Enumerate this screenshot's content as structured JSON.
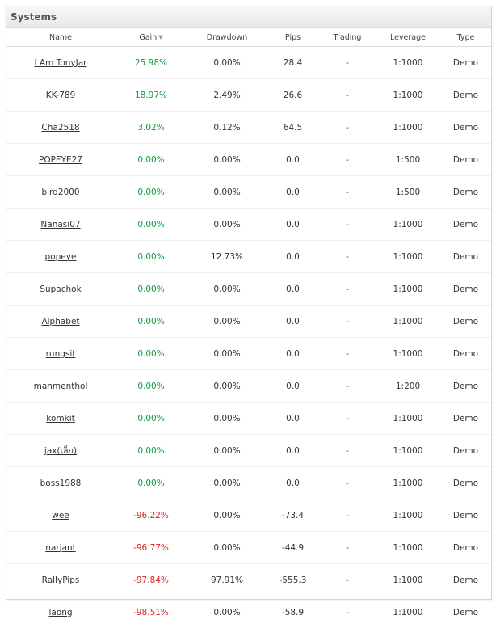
{
  "panel": {
    "title": "Systems"
  },
  "columns": {
    "name": "Name",
    "gain": "Gain",
    "drawdown": "Drawdown",
    "pips": "Pips",
    "trading": "Trading",
    "leverage": "Leverage",
    "type": "Type"
  },
  "colors": {
    "positive": "#0d9b3b",
    "negative": "#d92424"
  },
  "rows": [
    {
      "name": "I Am TonyJar",
      "gain": "25.98%",
      "drawdown": "0.00%",
      "pips": "28.4",
      "trading": "-",
      "leverage": "1:1000",
      "type": "Demo"
    },
    {
      "name": "KK-789",
      "gain": "18.97%",
      "drawdown": "2.49%",
      "pips": "26.6",
      "trading": "-",
      "leverage": "1:1000",
      "type": "Demo"
    },
    {
      "name": "Cha2518",
      "gain": "3.02%",
      "drawdown": "0.12%",
      "pips": "64.5",
      "trading": "-",
      "leverage": "1:1000",
      "type": "Demo"
    },
    {
      "name": "POPEYE27",
      "gain": "0.00%",
      "drawdown": "0.00%",
      "pips": "0.0",
      "trading": "-",
      "leverage": "1:500",
      "type": "Demo"
    },
    {
      "name": "bird2000",
      "gain": "0.00%",
      "drawdown": "0.00%",
      "pips": "0.0",
      "trading": "-",
      "leverage": "1:500",
      "type": "Demo"
    },
    {
      "name": "Nanasi07",
      "gain": "0.00%",
      "drawdown": "0.00%",
      "pips": "0.0",
      "trading": "-",
      "leverage": "1:1000",
      "type": "Demo"
    },
    {
      "name": "popeye",
      "gain": "0.00%",
      "drawdown": "12.73%",
      "pips": "0.0",
      "trading": "-",
      "leverage": "1:1000",
      "type": "Demo"
    },
    {
      "name": "Supachok",
      "gain": "0.00%",
      "drawdown": "0.00%",
      "pips": "0.0",
      "trading": "-",
      "leverage": "1:1000",
      "type": "Demo"
    },
    {
      "name": "Alphabet",
      "gain": "0.00%",
      "drawdown": "0.00%",
      "pips": "0.0",
      "trading": "-",
      "leverage": "1:1000",
      "type": "Demo"
    },
    {
      "name": "rungsit",
      "gain": "0.00%",
      "drawdown": "0.00%",
      "pips": "0.0",
      "trading": "-",
      "leverage": "1:1000",
      "type": "Demo"
    },
    {
      "name": "manmenthol",
      "gain": "0.00%",
      "drawdown": "0.00%",
      "pips": "0.0",
      "trading": "-",
      "leverage": "1:200",
      "type": "Demo"
    },
    {
      "name": "komkit",
      "gain": "0.00%",
      "drawdown": "0.00%",
      "pips": "0.0",
      "trading": "-",
      "leverage": "1:1000",
      "type": "Demo"
    },
    {
      "name": "jax(เล็ก)",
      "gain": "0.00%",
      "drawdown": "0.00%",
      "pips": "0.0",
      "trading": "-",
      "leverage": "1:1000",
      "type": "Demo"
    },
    {
      "name": "boss1988",
      "gain": "0.00%",
      "drawdown": "0.00%",
      "pips": "0.0",
      "trading": "-",
      "leverage": "1:1000",
      "type": "Demo"
    },
    {
      "name": "wee",
      "gain": "-96.22%",
      "drawdown": "0.00%",
      "pips": "-73.4",
      "trading": "-",
      "leverage": "1:1000",
      "type": "Demo"
    },
    {
      "name": "narjant",
      "gain": "-96.77%",
      "drawdown": "0.00%",
      "pips": "-44.9",
      "trading": "-",
      "leverage": "1:1000",
      "type": "Demo"
    },
    {
      "name": "RallyPips",
      "gain": "-97.84%",
      "drawdown": "97.91%",
      "pips": "-555.3",
      "trading": "-",
      "leverage": "1:1000",
      "type": "Demo"
    },
    {
      "name": "laong",
      "gain": "-98.51%",
      "drawdown": "0.00%",
      "pips": "-58.9",
      "trading": "-",
      "leverage": "1:1000",
      "type": "Demo"
    }
  ]
}
